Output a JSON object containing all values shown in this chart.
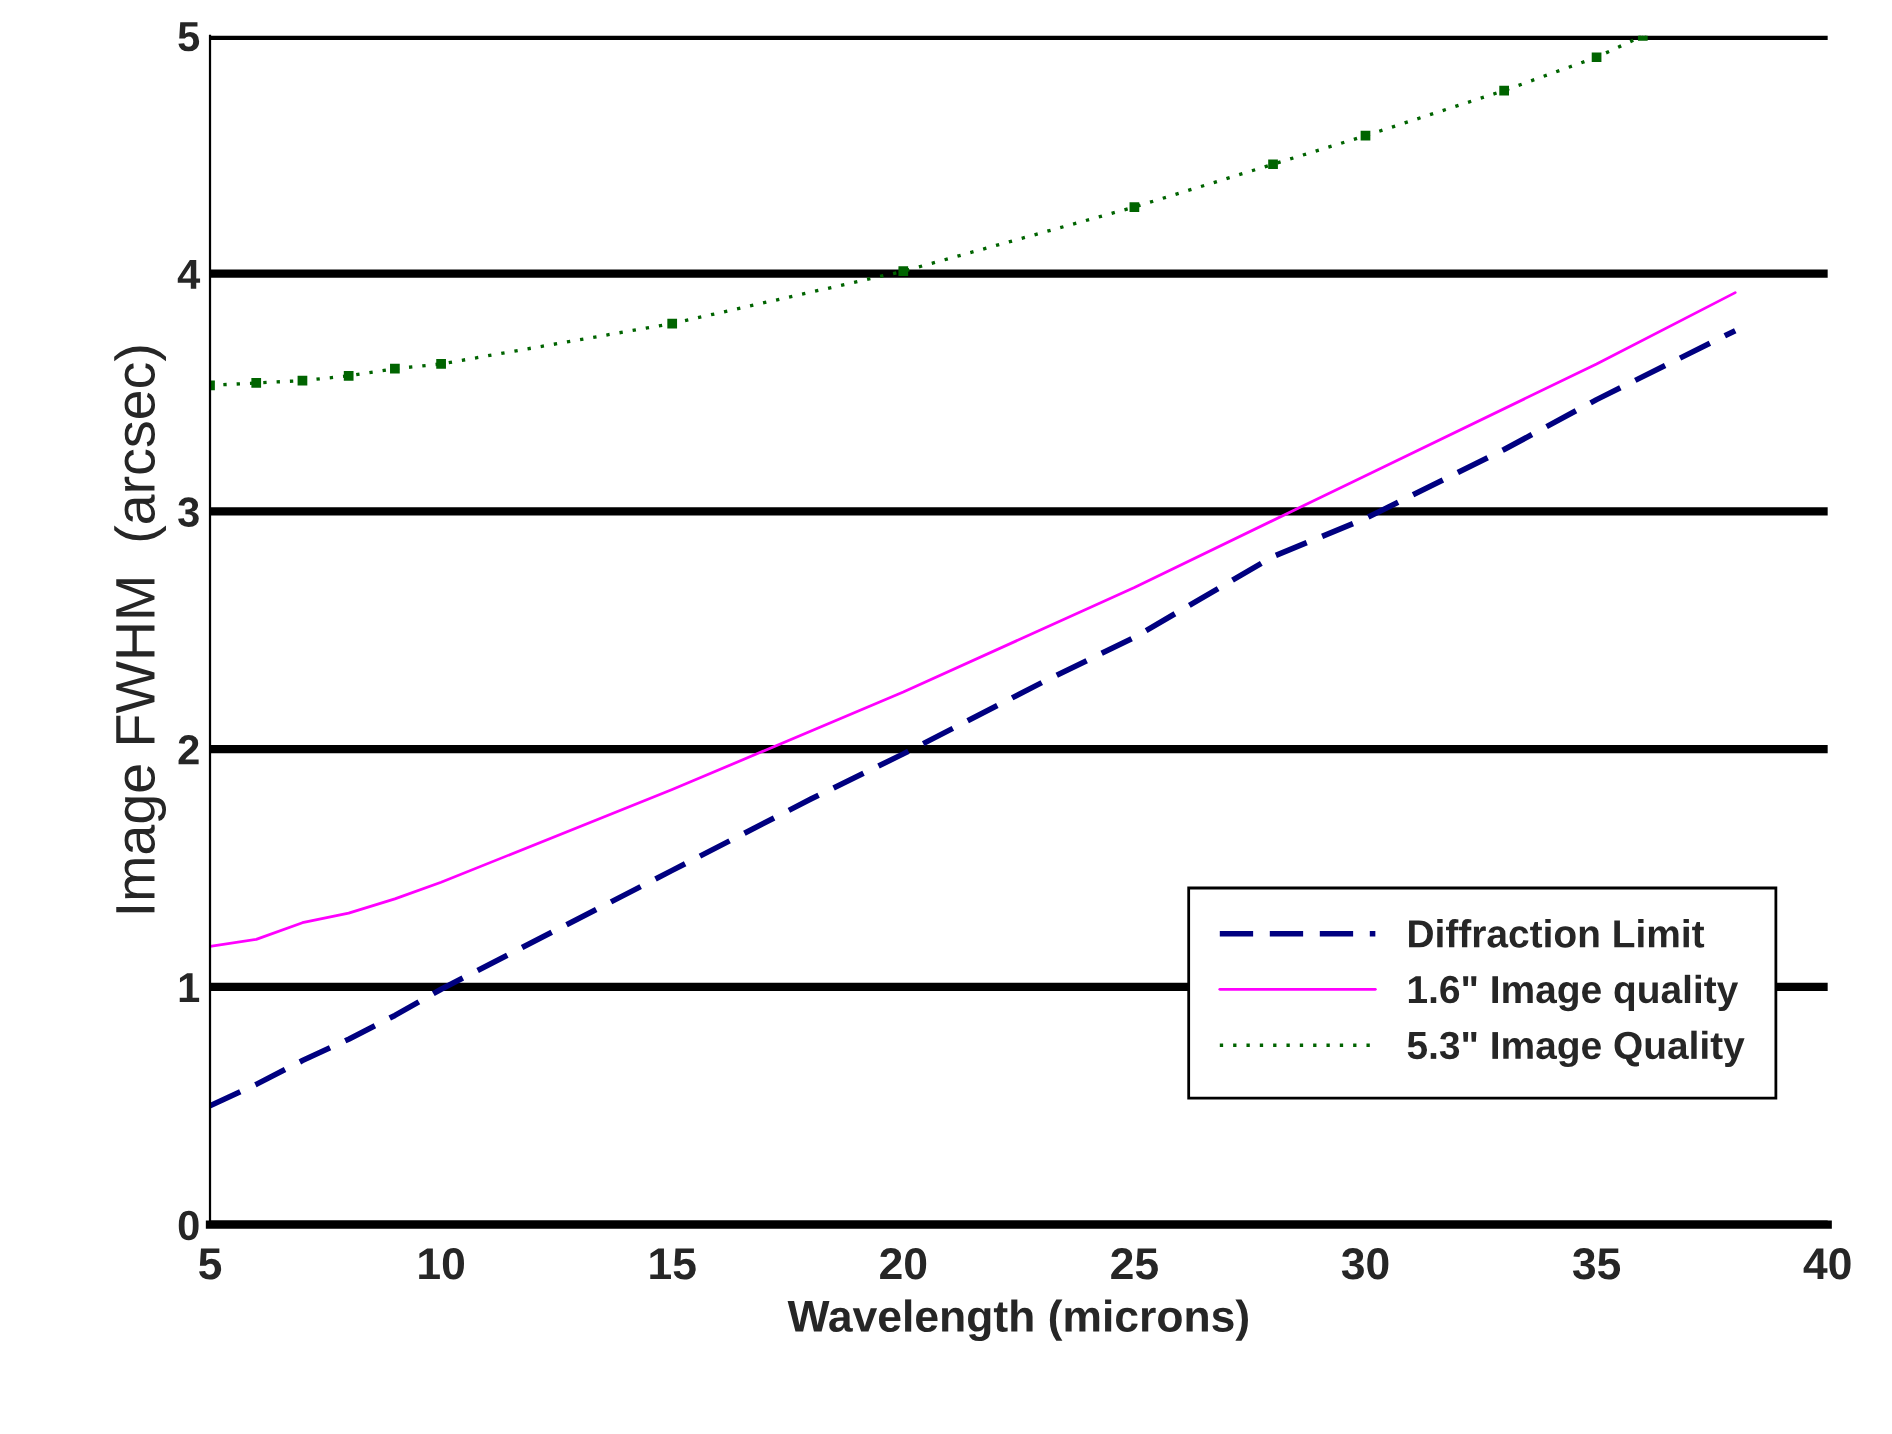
{
  "chart_data": {
    "type": "line",
    "xlabel": "Wavelength (microns)",
    "ylabel": "Image FWHM  (arcsec)",
    "xlim": [
      5,
      40
    ],
    "xticks": [
      5,
      10,
      15,
      20,
      25,
      30,
      35,
      40
    ],
    "ylim": [
      0,
      5
    ],
    "yticks": [
      0,
      1,
      2,
      3,
      4,
      5
    ],
    "grid": "y",
    "legend": "bottom right",
    "series": [
      {
        "name": "Diffraction Limit",
        "color": "#000080",
        "line_style": "dashed",
        "x": [
          5,
          6,
          7,
          8,
          9,
          10,
          15,
          18,
          20,
          23,
          25,
          28,
          30,
          33,
          35,
          38
        ],
        "values": [
          0.5,
          0.59,
          0.69,
          0.78,
          0.88,
          0.99,
          1.49,
          1.79,
          1.98,
          2.28,
          2.47,
          2.81,
          2.97,
          3.26,
          3.47,
          3.76
        ]
      },
      {
        "name": "1.6\" Image quality",
        "color": "#ff00ff",
        "line_style": "solid",
        "x": [
          5,
          6,
          7,
          8,
          9,
          10,
          15,
          20,
          25,
          30,
          35,
          38
        ],
        "values": [
          1.17,
          1.2,
          1.27,
          1.31,
          1.37,
          1.44,
          1.83,
          2.24,
          2.68,
          3.15,
          3.62,
          3.92
        ]
      },
      {
        "name": "5.3\" Image Quality",
        "color": "#006400",
        "line_style": "dotted",
        "marker": "square",
        "x": [
          5,
          6,
          7,
          8,
          9,
          10,
          15,
          20,
          25,
          28,
          30,
          33,
          35,
          36
        ],
        "values": [
          3.53,
          3.54,
          3.55,
          3.57,
          3.6,
          3.62,
          3.79,
          4.01,
          4.28,
          4.46,
          4.58,
          4.77,
          4.91,
          5.0
        ]
      }
    ]
  }
}
